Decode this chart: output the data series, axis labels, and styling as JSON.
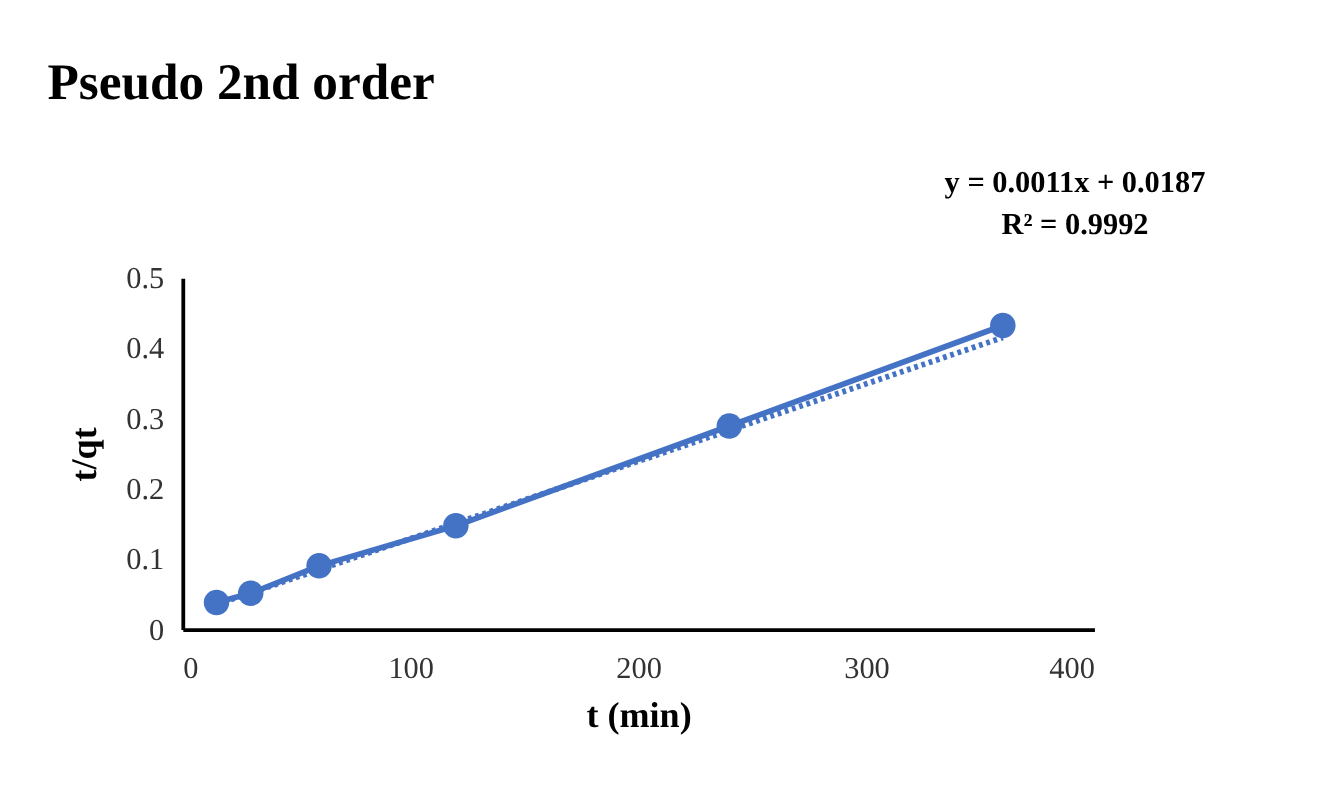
{
  "chart_data": {
    "type": "line",
    "title": "Pseudo 2nd order",
    "xlabel": "t (min)",
    "ylabel": "t/qt",
    "annotations": [
      "y = 0.0011x + 0.0187",
      "R² = 0.9992"
    ],
    "x": [
      15,
      30,
      60,
      120,
      240,
      360
    ],
    "series": [
      {
        "color": "#4472c4",
        "marker": "circle",
        "line_style": "solid",
        "values": [
          0.038,
          0.051,
          0.09,
          0.147,
          0.289,
          0.432
        ]
      },
      {
        "color": "#4472c4",
        "marker": "none",
        "line_style": "dotted",
        "x": [
          15,
          360
        ],
        "values": [
          0.035,
          0.415
        ]
      }
    ],
    "xlim": [
      0,
      400
    ],
    "xticks": [
      0,
      100,
      200,
      300,
      400
    ],
    "ylim": [
      0,
      0.5
    ],
    "yticks": [
      0,
      0.1,
      0.2,
      0.3,
      0.4,
      0.5
    ],
    "grid": false
  }
}
